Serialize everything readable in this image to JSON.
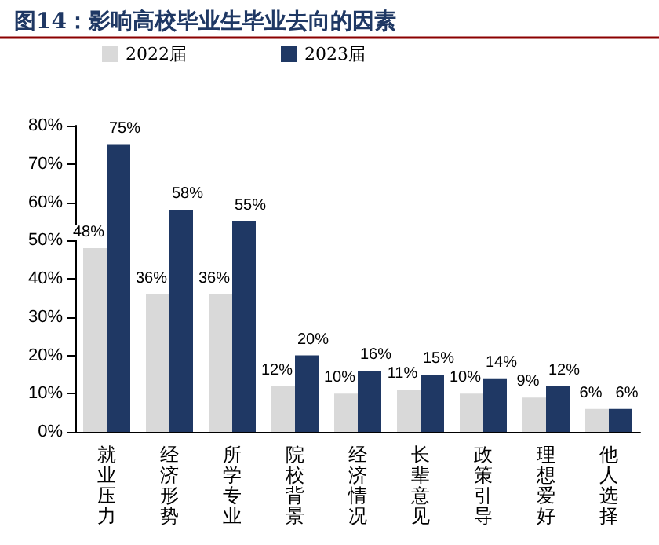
{
  "chart_data": {
    "type": "bar",
    "title": "图14：影响高校毕业生毕业去向的因素",
    "categories": [
      "就业压力",
      "经济形势",
      "所学专业",
      "院校背景",
      "经济情况",
      "长辈意见",
      "政策引导",
      "理想爱好",
      "他人选择"
    ],
    "series": [
      {
        "name": "2022届",
        "color": "#d9d9d9",
        "values": [
          48,
          36,
          36,
          12,
          10,
          11,
          10,
          9,
          6
        ],
        "value_labels": [
          "48%",
          "36%",
          "36%",
          "12%",
          "10%",
          "11%",
          "10%",
          "9%",
          "6%"
        ]
      },
      {
        "name": "2023届",
        "color": "#1f3864",
        "values": [
          75,
          58,
          55,
          20,
          16,
          15,
          14,
          12,
          6
        ],
        "value_labels": [
          "75%",
          "58%",
          "55%",
          "20%",
          "16%",
          "15%",
          "14%",
          "12%",
          "6%"
        ]
      }
    ],
    "ylim": [
      0,
      80
    ],
    "yticks": [
      {
        "value": 0,
        "label": "0%"
      },
      {
        "value": 10,
        "label": "10%"
      },
      {
        "value": 20,
        "label": "20%"
      },
      {
        "value": 30,
        "label": "30%"
      },
      {
        "value": 40,
        "label": "40%"
      },
      {
        "value": 50,
        "label": "50%"
      },
      {
        "value": 60,
        "label": "60%"
      },
      {
        "value": 70,
        "label": "70%"
      },
      {
        "value": 80,
        "label": "80%"
      }
    ],
    "grid": false,
    "legend": "top left"
  }
}
